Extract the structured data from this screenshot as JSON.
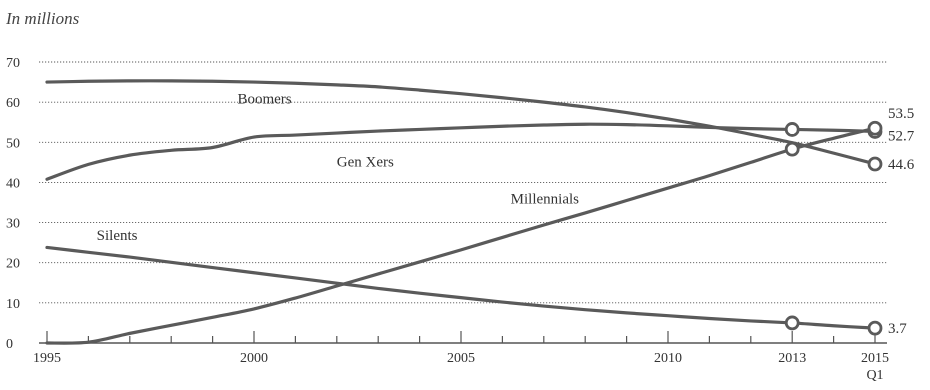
{
  "chart_data": {
    "type": "line",
    "title": "",
    "unit_label": "In millions",
    "xlabel": "",
    "ylabel": "",
    "xlim": [
      1995,
      2015
    ],
    "ylim": [
      0,
      70
    ],
    "x_ticks": [
      {
        "value": 1995,
        "label": "1995"
      },
      {
        "value": 2000,
        "label": "2000"
      },
      {
        "value": 2005,
        "label": "2005"
      },
      {
        "value": 2010,
        "label": "2010"
      },
      {
        "value": 2013,
        "label": "2013"
      },
      {
        "value": 2015,
        "label": "2015",
        "sublabel": "Q1"
      }
    ],
    "y_ticks": [
      {
        "value": 0,
        "label": "0"
      },
      {
        "value": 10,
        "label": "10"
      },
      {
        "value": 20,
        "label": "20"
      },
      {
        "value": 30,
        "label": "30"
      },
      {
        "value": 40,
        "label": "40"
      },
      {
        "value": 50,
        "label": "50"
      },
      {
        "value": 60,
        "label": "60"
      },
      {
        "value": 70,
        "label": "70"
      }
    ],
    "grid": true,
    "series_color": "#5a5a5a",
    "series": [
      {
        "name": "Boomers",
        "label_at": [
          1999.6,
          59.7
        ],
        "points": [
          [
            1995,
            65.0
          ],
          [
            1996,
            65.2
          ],
          [
            1997,
            65.3
          ],
          [
            1998,
            65.3
          ],
          [
            1999,
            65.2
          ],
          [
            2000,
            65.0
          ],
          [
            2001,
            64.7
          ],
          [
            2002,
            64.3
          ],
          [
            2003,
            63.8
          ],
          [
            2004,
            63.0
          ],
          [
            2005,
            62.1
          ],
          [
            2006,
            61.1
          ],
          [
            2007,
            60.0
          ],
          [
            2008,
            58.8
          ],
          [
            2009,
            57.4
          ],
          [
            2010,
            55.8
          ],
          [
            2011,
            54.0
          ],
          [
            2012,
            52.0
          ],
          [
            2013,
            49.9
          ],
          [
            2014,
            47.3
          ],
          [
            2015,
            44.6
          ]
        ],
        "markers": [
          2015
        ],
        "end_label": "44.6"
      },
      {
        "name": "Gen Xers",
        "label_at": [
          2002.0,
          44.0
        ],
        "points": [
          [
            1995,
            40.8
          ],
          [
            1996,
            44.5
          ],
          [
            1997,
            46.8
          ],
          [
            1998,
            48.0
          ],
          [
            1999,
            48.7
          ],
          [
            2000,
            51.3
          ],
          [
            2001,
            51.8
          ],
          [
            2002,
            52.3
          ],
          [
            2003,
            52.8
          ],
          [
            2004,
            53.2
          ],
          [
            2005,
            53.6
          ],
          [
            2006,
            54.0
          ],
          [
            2007,
            54.3
          ],
          [
            2008,
            54.5
          ],
          [
            2009,
            54.4
          ],
          [
            2010,
            54.1
          ],
          [
            2011,
            53.7
          ],
          [
            2012,
            53.4
          ],
          [
            2013,
            53.2
          ],
          [
            2014,
            53.0
          ],
          [
            2015,
            52.7
          ]
        ],
        "markers": [
          2013,
          2015
        ],
        "end_label": "52.7"
      },
      {
        "name": "Millennials",
        "label_at": [
          2006.2,
          34.8
        ],
        "points": [
          [
            1995,
            0.0
          ],
          [
            1996,
            0.2
          ],
          [
            1997,
            2.4
          ],
          [
            1998,
            4.4
          ],
          [
            1999,
            6.4
          ],
          [
            2000,
            8.5
          ],
          [
            2001,
            11.2
          ],
          [
            2002,
            14.2
          ],
          [
            2003,
            17.2
          ],
          [
            2004,
            20.2
          ],
          [
            2005,
            23.2
          ],
          [
            2006,
            26.3
          ],
          [
            2007,
            29.4
          ],
          [
            2008,
            32.4
          ],
          [
            2009,
            35.5
          ],
          [
            2010,
            38.6
          ],
          [
            2011,
            41.7
          ],
          [
            2012,
            45.0
          ],
          [
            2013,
            48.3
          ],
          [
            2014,
            51.0
          ],
          [
            2015,
            53.5
          ]
        ],
        "markers": [
          2013,
          2015
        ],
        "end_label": "53.5"
      },
      {
        "name": "Silents",
        "label_at": [
          1996.2,
          25.7
        ],
        "points": [
          [
            1995,
            23.8
          ],
          [
            1996,
            22.6
          ],
          [
            1997,
            21.4
          ],
          [
            1998,
            20.1
          ],
          [
            1999,
            18.8
          ],
          [
            2000,
            17.5
          ],
          [
            2001,
            16.2
          ],
          [
            2002,
            14.9
          ],
          [
            2003,
            13.6
          ],
          [
            2004,
            12.4
          ],
          [
            2005,
            11.3
          ],
          [
            2006,
            10.2
          ],
          [
            2007,
            9.2
          ],
          [
            2008,
            8.3
          ],
          [
            2009,
            7.5
          ],
          [
            2010,
            6.8
          ],
          [
            2011,
            6.1
          ],
          [
            2012,
            5.5
          ],
          [
            2013,
            5.0
          ],
          [
            2014,
            4.3
          ],
          [
            2015,
            3.7
          ]
        ],
        "markers": [
          2013,
          2015
        ],
        "end_label": "3.7"
      }
    ]
  }
}
